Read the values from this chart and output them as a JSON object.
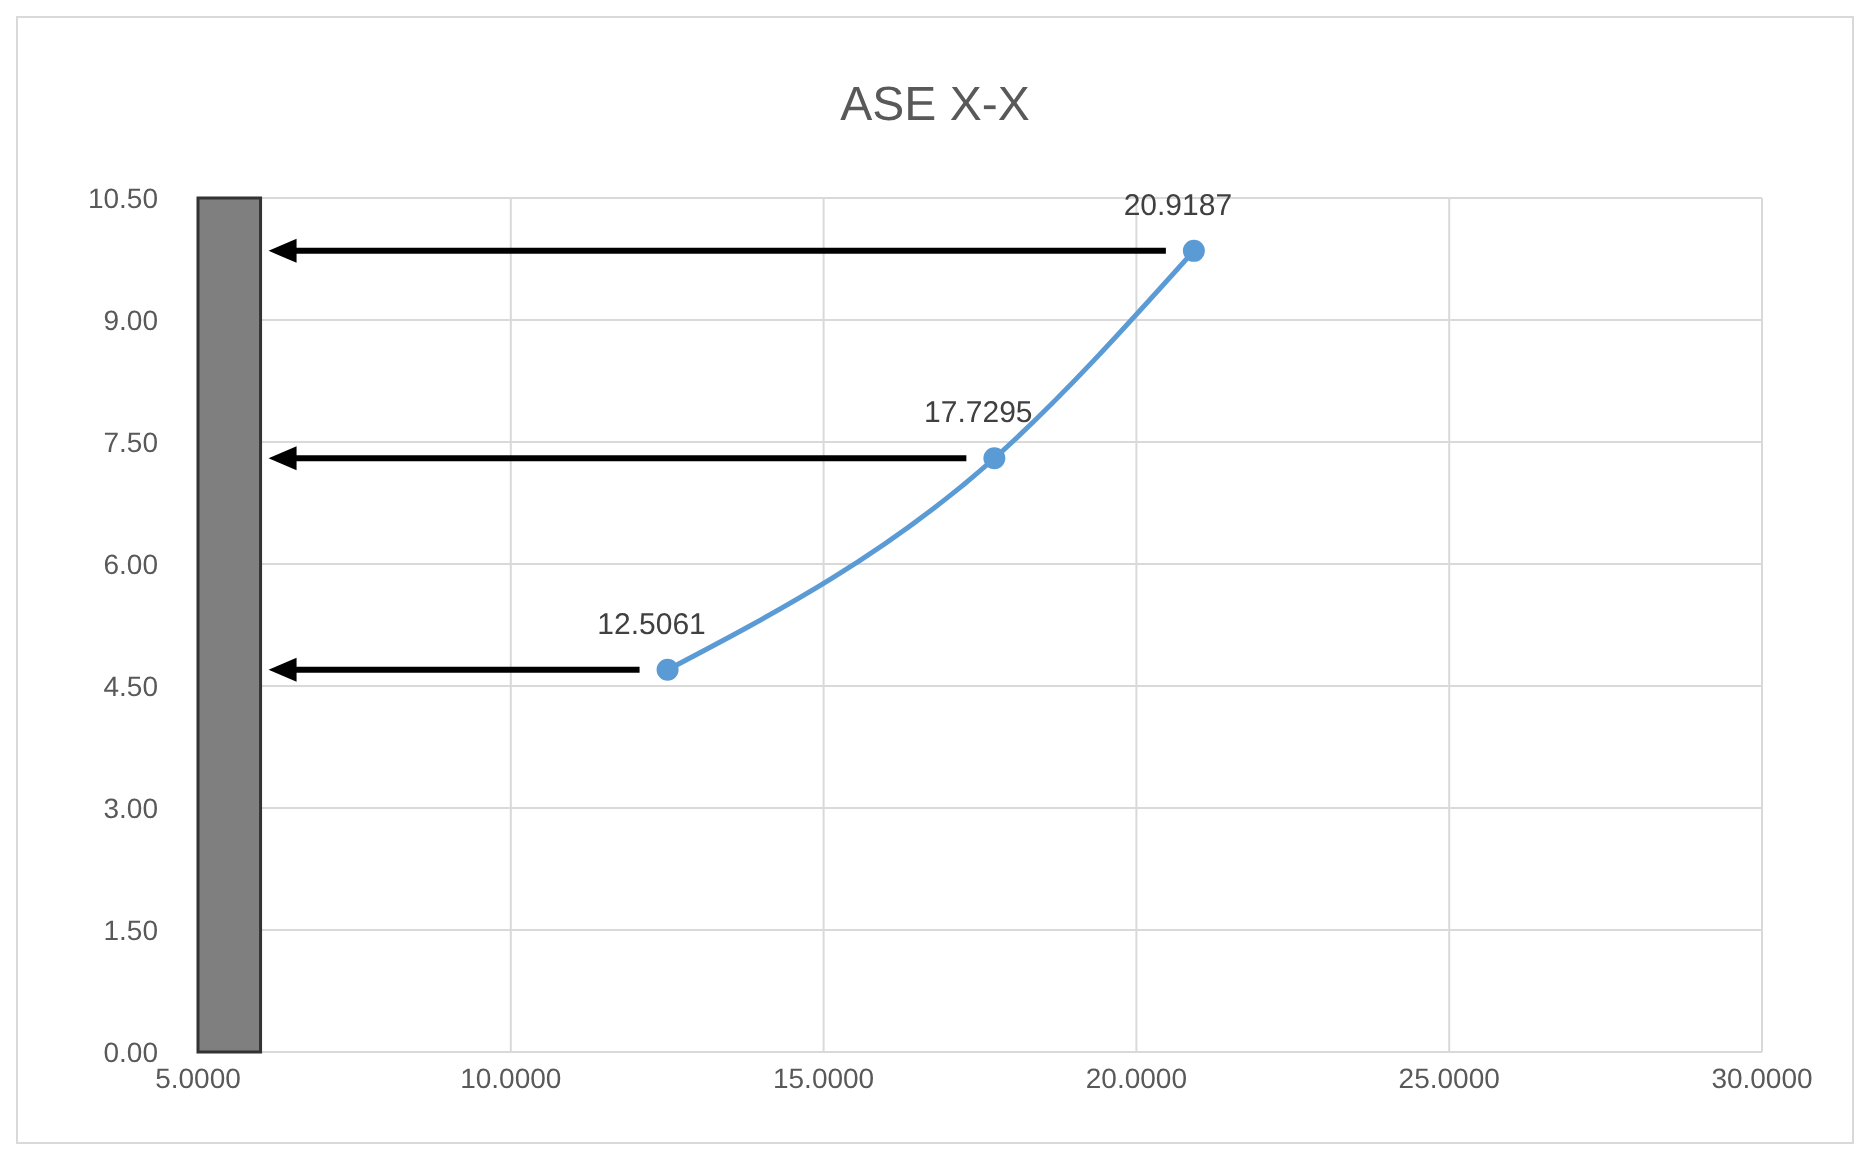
{
  "chart_data": {
    "type": "line",
    "title": "ASE X-X",
    "x": [
      12.5061,
      17.7295,
      20.9187
    ],
    "series": [
      {
        "color": "#5b9bd5",
        "values": [
          4.7,
          7.3,
          9.85
        ]
      }
    ],
    "annotations": [
      {
        "text": "12.5061",
        "x": 12.5061,
        "y": 4.7
      },
      {
        "text": "17.7295",
        "x": 17.7295,
        "y": 7.3
      },
      {
        "text": "20.9187",
        "x": 20.9187,
        "y": 9.85
      }
    ],
    "xlim": [
      5,
      30
    ],
    "xticks": [
      {
        "value": 5,
        "label": "5.0000"
      },
      {
        "value": 10,
        "label": "10.0000"
      },
      {
        "value": 15,
        "label": "15.0000"
      },
      {
        "value": 20,
        "label": "20.0000"
      },
      {
        "value": 25,
        "label": "25.0000"
      },
      {
        "value": 30,
        "label": "30.0000"
      }
    ],
    "ylim": [
      0,
      10.5
    ],
    "yticks": [
      {
        "value": 0,
        "label": "0.00"
      },
      {
        "value": 1.5,
        "label": "1.50"
      },
      {
        "value": 3,
        "label": "3.00"
      },
      {
        "value": 4.5,
        "label": "4.50"
      },
      {
        "value": 6,
        "label": "6.00"
      },
      {
        "value": 7.5,
        "label": "7.50"
      },
      {
        "value": 9,
        "label": "9.00"
      },
      {
        "value": 10.5,
        "label": "10.50"
      }
    ],
    "bands": [
      {
        "axis": "x",
        "from": 5,
        "to": 6,
        "color": "#7f7f7f"
      }
    ],
    "grid": true,
    "legend": false,
    "marker": "circle",
    "line_style": "solid"
  }
}
